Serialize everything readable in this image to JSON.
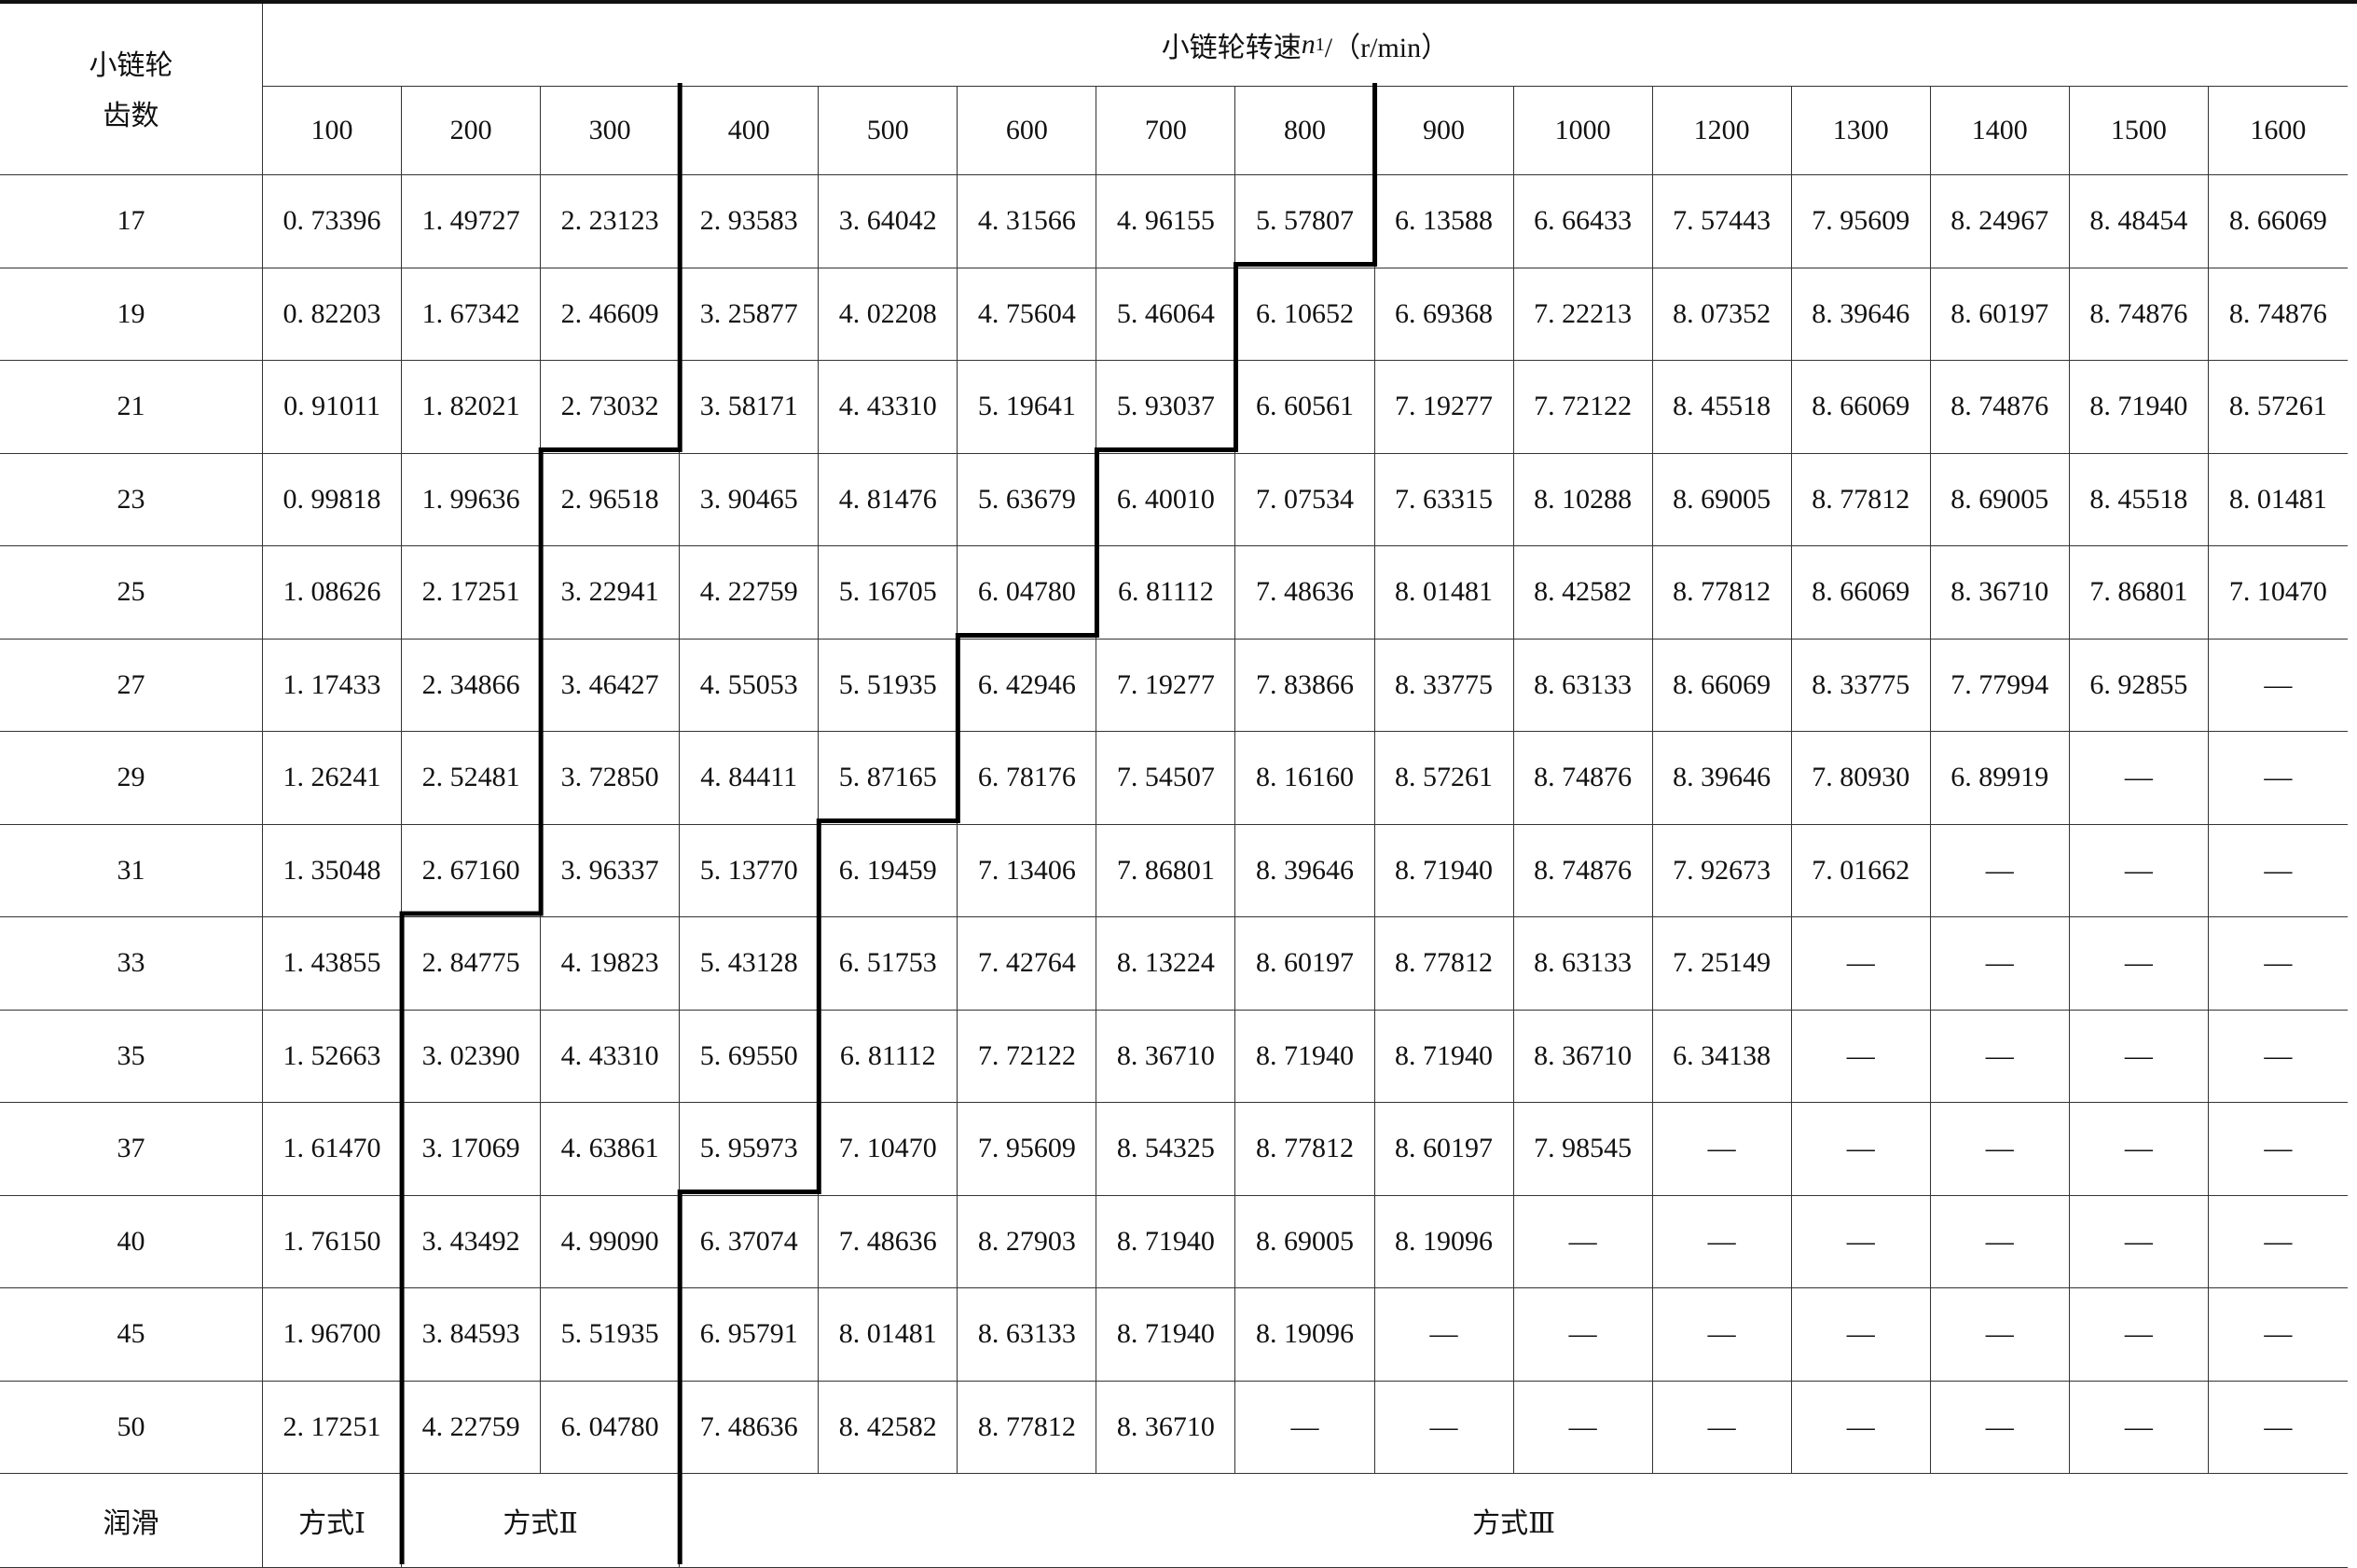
{
  "header": {
    "row_label_line1": "小链轮",
    "row_label_line2": "齿数",
    "speed_title_prefix": "小链轮转速 ",
    "speed_symbol": "n",
    "speed_subscript": "1",
    "speed_unit": "/（r/min）"
  },
  "speeds": [
    "100",
    "200",
    "300",
    "400",
    "500",
    "600",
    "700",
    "800",
    "900",
    "1000",
    "1200",
    "1300",
    "1400",
    "1500",
    "1600"
  ],
  "rows": [
    {
      "teeth": "17",
      "values": [
        "0. 73396",
        "1. 49727",
        "2. 23123",
        "2. 93583",
        "3. 64042",
        "4. 31566",
        "4. 96155",
        "5. 57807",
        "6. 13588",
        "6. 66433",
        "7. 57443",
        "7. 95609",
        "8. 24967",
        "8. 48454",
        "8. 66069"
      ],
      "mode_II_start": 3,
      "mode_III_start": 8
    },
    {
      "teeth": "19",
      "values": [
        "0. 82203",
        "1. 67342",
        "2. 46609",
        "3. 25877",
        "4. 02208",
        "4. 75604",
        "5. 46064",
        "6. 10652",
        "6. 69368",
        "7. 22213",
        "8. 07352",
        "8. 39646",
        "8. 60197",
        "8. 74876",
        "8. 74876"
      ],
      "mode_II_start": 3,
      "mode_III_start": 7
    },
    {
      "teeth": "21",
      "values": [
        "0. 91011",
        "1. 82021",
        "2. 73032",
        "3. 58171",
        "4. 43310",
        "5. 19641",
        "5. 93037",
        "6. 60561",
        "7. 19277",
        "7. 72122",
        "8. 45518",
        "8. 66069",
        "8. 74876",
        "8. 71940",
        "8. 57261"
      ],
      "mode_II_start": 3,
      "mode_III_start": 7
    },
    {
      "teeth": "23",
      "values": [
        "0. 99818",
        "1. 99636",
        "2. 96518",
        "3. 90465",
        "4. 81476",
        "5. 63679",
        "6. 40010",
        "7. 07534",
        "7. 63315",
        "8. 10288",
        "8. 69005",
        "8. 77812",
        "8. 69005",
        "8. 45518",
        "8. 01481"
      ],
      "mode_II_start": 2,
      "mode_III_start": 6
    },
    {
      "teeth": "25",
      "values": [
        "1. 08626",
        "2. 17251",
        "3. 22941",
        "4. 22759",
        "5. 16705",
        "6. 04780",
        "6. 81112",
        "7. 48636",
        "8. 01481",
        "8. 42582",
        "8. 77812",
        "8. 66069",
        "8. 36710",
        "7. 86801",
        "7. 10470"
      ],
      "mode_II_start": 2,
      "mode_III_start": 6
    },
    {
      "teeth": "27",
      "values": [
        "1. 17433",
        "2. 34866",
        "3. 46427",
        "4. 55053",
        "5. 51935",
        "6. 42946",
        "7. 19277",
        "7. 83866",
        "8. 33775",
        "8. 63133",
        "8. 66069",
        "8. 33775",
        "7. 77994",
        "6. 92855",
        "—"
      ],
      "mode_II_start": 2,
      "mode_III_start": 5
    },
    {
      "teeth": "29",
      "values": [
        "1. 26241",
        "2. 52481",
        "3. 72850",
        "4. 84411",
        "5. 87165",
        "6. 78176",
        "7. 54507",
        "8. 16160",
        "8. 57261",
        "8. 74876",
        "8. 39646",
        "7. 80930",
        "6. 89919",
        "—",
        "—"
      ],
      "mode_II_start": 2,
      "mode_III_start": 5
    },
    {
      "teeth": "31",
      "values": [
        "1. 35048",
        "2. 67160",
        "3. 96337",
        "5. 13770",
        "6. 19459",
        "7. 13406",
        "7. 86801",
        "8. 39646",
        "8. 71940",
        "8. 74876",
        "7. 92673",
        "7. 01662",
        "—",
        "—",
        "—"
      ],
      "mode_II_start": 2,
      "mode_III_start": 4
    },
    {
      "teeth": "33",
      "values": [
        "1. 43855",
        "2. 84775",
        "4. 19823",
        "5. 43128",
        "6. 51753",
        "7. 42764",
        "8. 13224",
        "8. 60197",
        "8. 77812",
        "8. 63133",
        "7. 25149",
        "—",
        "—",
        "—",
        "—"
      ],
      "mode_II_start": 1,
      "mode_III_start": 4
    },
    {
      "teeth": "35",
      "values": [
        "1. 52663",
        "3. 02390",
        "4. 43310",
        "5. 69550",
        "6. 81112",
        "7. 72122",
        "8. 36710",
        "8. 71940",
        "8. 71940",
        "8. 36710",
        "6. 34138",
        "—",
        "—",
        "—",
        "—"
      ],
      "mode_II_start": 1,
      "mode_III_start": 4
    },
    {
      "teeth": "37",
      "values": [
        "1. 61470",
        "3. 17069",
        "4. 63861",
        "5. 95973",
        "7. 10470",
        "7. 95609",
        "8. 54325",
        "8. 77812",
        "8. 60197",
        "7. 98545",
        "—",
        "—",
        "—",
        "—",
        "—"
      ],
      "mode_II_start": 1,
      "mode_III_start": 4
    },
    {
      "teeth": "40",
      "values": [
        "1. 76150",
        "3. 43492",
        "4. 99090",
        "6. 37074",
        "7. 48636",
        "8. 27903",
        "8. 71940",
        "8. 69005",
        "8. 19096",
        "—",
        "—",
        "—",
        "—",
        "—",
        "—"
      ],
      "mode_II_start": 1,
      "mode_III_start": 3
    },
    {
      "teeth": "45",
      "values": [
        "1. 96700",
        "3. 84593",
        "5. 51935",
        "6. 95791",
        "8. 01481",
        "8. 63133",
        "8. 71940",
        "8. 19096",
        "—",
        "—",
        "—",
        "—",
        "—",
        "—",
        "—"
      ],
      "mode_II_start": 1,
      "mode_III_start": 3
    },
    {
      "teeth": "50",
      "values": [
        "2. 17251",
        "4. 22759",
        "6. 04780",
        "7. 48636",
        "8. 42582",
        "8. 77812",
        "8. 36710",
        "—",
        "—",
        "—",
        "—",
        "—",
        "—",
        "—",
        "—"
      ],
      "mode_II_start": 1,
      "mode_III_start": 3
    }
  ],
  "lubrication": {
    "label": "润滑",
    "modes": [
      {
        "label": "方式Ⅰ",
        "from": 0,
        "to": 0
      },
      {
        "label": "方式Ⅱ",
        "from": 1,
        "to": 2
      },
      {
        "label": "方式Ⅲ",
        "from": 3,
        "to": 14
      }
    ]
  }
}
